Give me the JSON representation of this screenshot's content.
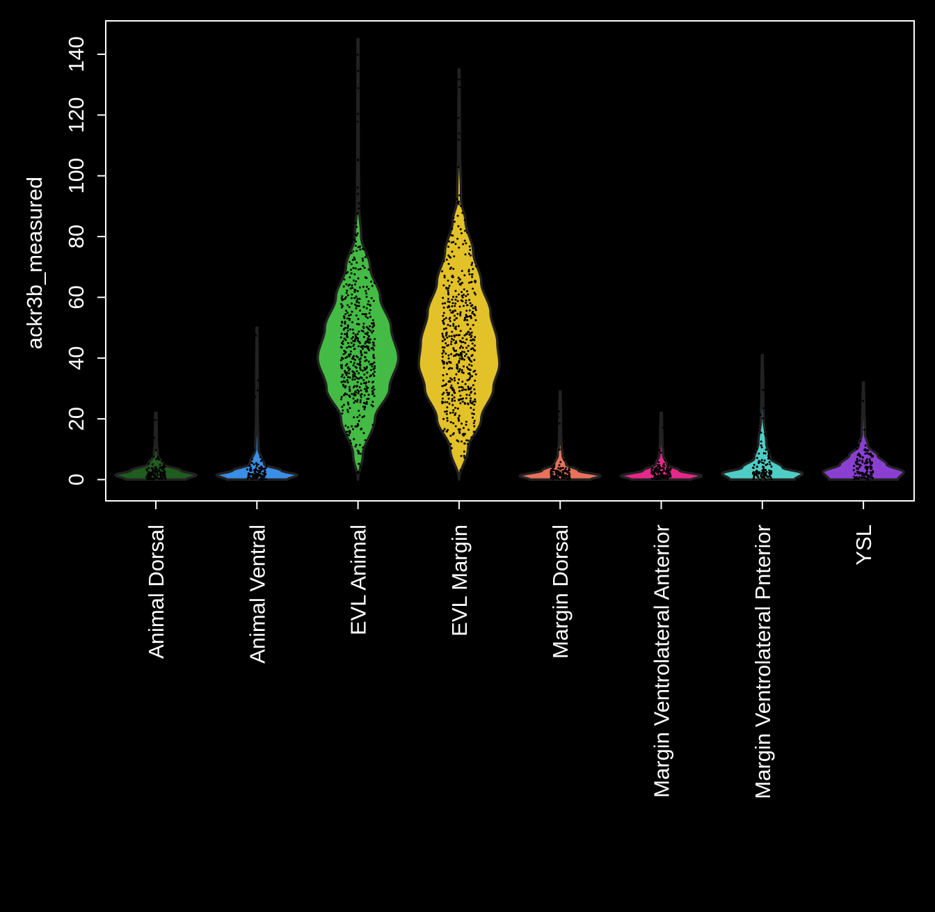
{
  "chart_data": {
    "type": "violin",
    "title": "",
    "xlabel": "",
    "ylabel": "ackr3b_measured",
    "ylim": [
      -7,
      151
    ],
    "yticks": [
      0,
      20,
      40,
      60,
      80,
      100,
      120,
      140
    ],
    "grid": false,
    "legend": "none",
    "colors": {
      "background": "#000000",
      "axes": "#ffffff",
      "text": "#ffffff",
      "violin_edge": "#222222",
      "points": "#000000"
    },
    "categories": [
      "Animal Dorsal",
      "Animal Ventral",
      "EVL Animal",
      "EVL Margin",
      "Margin Dorsal",
      "Margin Ventrolateral Anterior",
      "Margin Ventrolateral Pnterior",
      "YSL"
    ],
    "series": [
      {
        "color": "#1f5c1f",
        "min": 0,
        "max": 22,
        "median": 1,
        "mode": 1.5,
        "profile": [
          [
            0,
            0.75
          ],
          [
            1.5,
            1.0
          ],
          [
            3,
            0.62
          ],
          [
            5,
            0.2
          ],
          [
            8,
            0.05
          ],
          [
            12,
            0.025
          ],
          [
            22,
            0.015
          ]
        ]
      },
      {
        "color": "#3a8ee6",
        "min": 0,
        "max": 50,
        "median": 1,
        "mode": 1.5,
        "profile": [
          [
            0,
            0.75
          ],
          [
            1.5,
            1.0
          ],
          [
            3,
            0.6
          ],
          [
            5,
            0.18
          ],
          [
            10,
            0.04
          ],
          [
            20,
            0.02
          ],
          [
            35,
            0.015
          ],
          [
            50,
            0.01
          ]
        ]
      },
      {
        "color": "#44bb44",
        "min": 0,
        "max": 145,
        "median": 42,
        "mode": 40,
        "profile": [
          [
            0,
            0.0
          ],
          [
            8,
            0.12
          ],
          [
            20,
            0.42
          ],
          [
            30,
            0.78
          ],
          [
            40,
            1.0
          ],
          [
            50,
            0.82
          ],
          [
            60,
            0.55
          ],
          [
            70,
            0.3
          ],
          [
            80,
            0.08
          ],
          [
            90,
            0.025
          ],
          [
            110,
            0.015
          ],
          [
            145,
            0.01
          ]
        ]
      },
      {
        "color": "#e3c128",
        "min": 0,
        "max": 135,
        "median": 40,
        "mode": 38,
        "profile": [
          [
            0,
            0.0
          ],
          [
            10,
            0.22
          ],
          [
            20,
            0.55
          ],
          [
            30,
            0.85
          ],
          [
            38,
            1.0
          ],
          [
            45,
            0.95
          ],
          [
            55,
            0.78
          ],
          [
            65,
            0.55
          ],
          [
            75,
            0.35
          ],
          [
            85,
            0.16
          ],
          [
            92,
            0.05
          ],
          [
            110,
            0.02
          ],
          [
            135,
            0.01
          ]
        ]
      },
      {
        "color": "#e8735a",
        "min": 0,
        "max": 29,
        "median": 1,
        "mode": 1.2,
        "profile": [
          [
            0,
            0.75
          ],
          [
            1.2,
            1.0
          ],
          [
            3,
            0.45
          ],
          [
            5,
            0.15
          ],
          [
            8,
            0.06
          ],
          [
            12,
            0.03
          ],
          [
            20,
            0.02
          ],
          [
            29,
            0.01
          ]
        ]
      },
      {
        "color": "#e8278a",
        "min": 0,
        "max": 22,
        "median": 1,
        "mode": 1.2,
        "profile": [
          [
            0,
            0.75
          ],
          [
            1.2,
            1.0
          ],
          [
            3,
            0.45
          ],
          [
            5,
            0.14
          ],
          [
            8,
            0.05
          ],
          [
            12,
            0.03
          ],
          [
            22,
            0.015
          ]
        ]
      },
      {
        "color": "#4ecdc4",
        "min": 0,
        "max": 41,
        "median": 2,
        "mode": 2,
        "profile": [
          [
            0,
            0.8
          ],
          [
            2,
            1.0
          ],
          [
            4,
            0.5
          ],
          [
            7,
            0.2
          ],
          [
            12,
            0.1
          ],
          [
            20,
            0.035
          ],
          [
            30,
            0.02
          ],
          [
            41,
            0.01
          ]
        ]
      },
      {
        "color": "#8a3fd1",
        "min": 0,
        "max": 32,
        "median": 2,
        "mode": 2.5,
        "profile": [
          [
            0,
            0.85
          ],
          [
            2.5,
            1.0
          ],
          [
            5,
            0.58
          ],
          [
            8,
            0.35
          ],
          [
            11,
            0.12
          ],
          [
            15,
            0.04
          ],
          [
            25,
            0.02
          ],
          [
            32,
            0.01
          ]
        ]
      }
    ]
  }
}
